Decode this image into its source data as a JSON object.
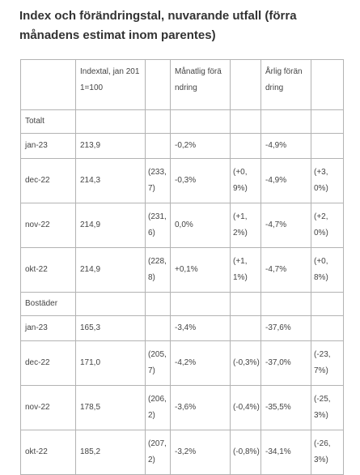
{
  "title": "Index och förändringstal, nuvarande utfall (förra månadens estimat inom parentes)",
  "headers": {
    "index": "Indextal, jan 2011=100",
    "monthly": "Månatlig förändring",
    "annual": "Årlig förändring"
  },
  "sections": [
    {
      "name": "Totalt",
      "rows": [
        {
          "period": "jan-23",
          "index": "213,9",
          "index_prev": "",
          "monthly": "-0,2%",
          "monthly_prev": "",
          "annual": "-4,9%",
          "annual_prev": ""
        },
        {
          "period": "dec-22",
          "index": "214,3",
          "index_prev": "(233,7)",
          "monthly": "-0,3%",
          "monthly_prev": "(+0,9%)",
          "annual": "-4,9%",
          "annual_prev": "(+3,0%)"
        },
        {
          "period": "nov-22",
          "index": "214,9",
          "index_prev": "(231,6)",
          "monthly": "0,0%",
          "monthly_prev": "(+1,2%)",
          "annual": "-4,7%",
          "annual_prev": "(+2,0%)"
        },
        {
          "period": "okt-22",
          "index": "214,9",
          "index_prev": "(228,8)",
          "monthly": "+0,1%",
          "monthly_prev": "(+1,1%)",
          "annual": "-4,7%",
          "annual_prev": "(+0,8%)"
        }
      ]
    },
    {
      "name": "Bostäder",
      "rows": [
        {
          "period": "jan-23",
          "index": "165,3",
          "index_prev": "",
          "monthly": "-3,4%",
          "monthly_prev": "",
          "annual": "-37,6%",
          "annual_prev": ""
        },
        {
          "period": "dec-22",
          "index": "171,0",
          "index_prev": "(205,7)",
          "monthly": "-4,2%",
          "monthly_prev": "(-0,3%)",
          "annual": "-37,0%",
          "annual_prev": "(-23,7%)"
        },
        {
          "period": "nov-22",
          "index": "178,5",
          "index_prev": "(206,2)",
          "monthly": "-3,6%",
          "monthly_prev": "(-0,4%)",
          "annual": "-35,5%",
          "annual_prev": "(-25,3%)"
        },
        {
          "period": "okt-22",
          "index": "185,2",
          "index_prev": "(207,2)",
          "monthly": "-3,2%",
          "monthly_prev": "(-0,8%)",
          "annual": "-34,1%",
          "annual_prev": "(-26,3%)"
        }
      ]
    }
  ]
}
